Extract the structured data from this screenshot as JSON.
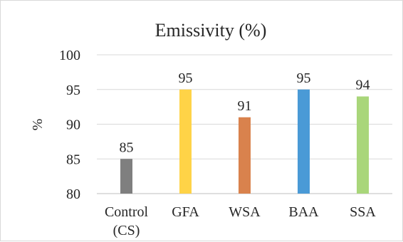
{
  "chart_data": {
    "type": "bar",
    "title": "Emissivity (%)",
    "ylabel": "%",
    "xlabel": "",
    "categories": [
      [
        "Control",
        "(CS)"
      ],
      [
        "GFA"
      ],
      [
        "WSA"
      ],
      [
        "BAA"
      ],
      [
        "SSA"
      ]
    ],
    "values": [
      85,
      95,
      91,
      95,
      94
    ],
    "data_labels": [
      "85",
      "95",
      "91",
      "95",
      "94"
    ],
    "colors": [
      "#7f7f7f",
      "#ffd347",
      "#d9824d",
      "#4a9ad6",
      "#a9d67a"
    ],
    "ylim": [
      80,
      100
    ],
    "yticks": [
      80,
      85,
      90,
      95,
      100
    ],
    "ytick_labels": [
      "80",
      "85",
      "90",
      "95",
      "100"
    ],
    "grid": true,
    "legend": "none"
  }
}
